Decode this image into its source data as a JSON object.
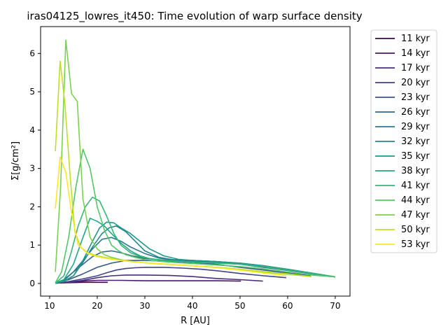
{
  "chart_data": {
    "type": "line",
    "title": "iras04125_lowres_it450: Time evolution of warp surface density",
    "xlabel": "R [AU]",
    "ylabel": "Σ[g/cm²]",
    "xlim": [
      8.1,
      73.1
    ],
    "ylim": [
      -0.33,
      6.7
    ],
    "xticks": [
      10,
      20,
      30,
      40,
      50,
      60,
      70
    ],
    "yticks": [
      0,
      1,
      2,
      3,
      4,
      5,
      6
    ],
    "legend_position": "outside-right",
    "grid": false,
    "series": [
      {
        "name": "11 kyr",
        "color": "#440154",
        "x": [
          11.2,
          14,
          17,
          20,
          22.2
        ],
        "y": [
          0.01,
          0.02,
          0.03,
          0.03,
          0.03
        ]
      },
      {
        "name": "14 kyr",
        "color": "#481a6c",
        "x": [
          11.2,
          14,
          17,
          20,
          25,
          30,
          35,
          40,
          45,
          50.2
        ],
        "y": [
          0.01,
          0.03,
          0.06,
          0.08,
          0.08,
          0.07,
          0.07,
          0.07,
          0.07,
          0.06
        ]
      },
      {
        "name": "17 kyr",
        "color": "#472f7d",
        "x": [
          11.2,
          14,
          17,
          20,
          23,
          26,
          30,
          35,
          40,
          45,
          50,
          54.8
        ],
        "y": [
          0.01,
          0.03,
          0.08,
          0.15,
          0.2,
          0.22,
          0.22,
          0.21,
          0.18,
          0.13,
          0.1,
          0.06
        ]
      },
      {
        "name": "20 kyr",
        "color": "#414487",
        "x": [
          11.2,
          14,
          17,
          20,
          22,
          24,
          26,
          28,
          30,
          34,
          38,
          42,
          46,
          50,
          55,
          59.7
        ],
        "y": [
          0.01,
          0.05,
          0.12,
          0.2,
          0.28,
          0.35,
          0.39,
          0.41,
          0.42,
          0.42,
          0.4,
          0.37,
          0.32,
          0.26,
          0.2,
          0.15
        ]
      },
      {
        "name": "23 kyr",
        "color": "#39568c",
        "x": [
          11.2,
          14,
          17,
          20,
          23,
          26,
          30,
          35,
          40,
          45,
          50,
          55,
          60,
          64.8
        ],
        "y": [
          0.01,
          0.1,
          0.25,
          0.42,
          0.53,
          0.6,
          0.6,
          0.58,
          0.55,
          0.5,
          0.42,
          0.35,
          0.27,
          0.2
        ]
      },
      {
        "name": "26 kyr",
        "color": "#31688e",
        "x": [
          11.2,
          13,
          15,
          17,
          19,
          21,
          23,
          25,
          27,
          30,
          33,
          36,
          40,
          45,
          50,
          55,
          60,
          65,
          70
        ],
        "y": [
          0.01,
          0.1,
          0.3,
          0.5,
          0.7,
          0.82,
          0.85,
          0.8,
          0.73,
          0.65,
          0.62,
          0.6,
          0.58,
          0.55,
          0.5,
          0.42,
          0.34,
          0.25,
          0.17
        ]
      },
      {
        "name": "29 kyr",
        "color": "#2a788e",
        "x": [
          11.2,
          13,
          15,
          17,
          19,
          21,
          23,
          25,
          27,
          30,
          33,
          36,
          40,
          45,
          50,
          55,
          60,
          65,
          70
        ],
        "y": [
          0.01,
          0.08,
          0.3,
          0.6,
          0.9,
          1.15,
          1.2,
          1.1,
          0.95,
          0.78,
          0.66,
          0.62,
          0.6,
          0.57,
          0.52,
          0.45,
          0.36,
          0.26,
          0.17
        ]
      },
      {
        "name": "32 kyr",
        "color": "#23888e",
        "x": [
          11.2,
          13,
          15,
          17,
          19,
          21,
          22.5,
          24,
          26,
          28,
          30,
          33,
          36,
          40,
          45,
          50,
          55,
          60,
          65,
          70
        ],
        "y": [
          0.01,
          0.06,
          0.2,
          0.55,
          0.95,
          1.3,
          1.45,
          1.5,
          1.35,
          1.1,
          0.85,
          0.68,
          0.62,
          0.6,
          0.57,
          0.53,
          0.46,
          0.37,
          0.27,
          0.17
        ]
      },
      {
        "name": "35 kyr",
        "color": "#1f988b",
        "x": [
          11.2,
          13,
          15,
          17,
          19,
          20.5,
          22,
          23.5,
          25,
          27,
          29,
          31,
          34,
          37,
          40,
          45,
          50,
          55,
          60,
          65,
          70
        ],
        "y": [
          0.01,
          0.05,
          0.2,
          0.6,
          1.1,
          1.45,
          1.6,
          1.58,
          1.45,
          1.3,
          1.1,
          0.9,
          0.72,
          0.63,
          0.6,
          0.57,
          0.53,
          0.46,
          0.37,
          0.27,
          0.17
        ]
      },
      {
        "name": "38 kyr",
        "color": "#22a884",
        "x": [
          11.2,
          13,
          15,
          17,
          18.5,
          20,
          21.5,
          23,
          25,
          27,
          29,
          31,
          34,
          37,
          40,
          45,
          50,
          55,
          60,
          65,
          70
        ],
        "y": [
          0.01,
          0.1,
          0.5,
          1.2,
          1.7,
          1.62,
          1.5,
          1.3,
          1.05,
          0.85,
          0.72,
          0.65,
          0.6,
          0.58,
          0.56,
          0.54,
          0.5,
          0.44,
          0.35,
          0.26,
          0.17
        ]
      },
      {
        "name": "41 kyr",
        "color": "#35b779",
        "x": [
          11.2,
          13,
          14.5,
          16,
          17.5,
          19,
          20.5,
          22,
          23.5,
          25,
          27,
          29,
          31,
          34,
          37,
          40,
          45,
          50,
          55,
          60,
          65,
          70
        ],
        "y": [
          0.01,
          0.2,
          0.8,
          1.5,
          2.0,
          2.25,
          2.15,
          1.75,
          1.3,
          1.0,
          0.8,
          0.7,
          0.65,
          0.6,
          0.58,
          0.56,
          0.53,
          0.5,
          0.44,
          0.35,
          0.26,
          0.17
        ]
      },
      {
        "name": "44 kyr",
        "color": "#54c568",
        "x": [
          11.2,
          12.5,
          14,
          15.5,
          17,
          18.5,
          20,
          21.5,
          23,
          24.5,
          26,
          28,
          30,
          33,
          36,
          40,
          45,
          50,
          55,
          60,
          65,
          70
        ],
        "y": [
          0.02,
          0.3,
          1.2,
          2.5,
          3.5,
          3.0,
          2.0,
          1.4,
          1.0,
          0.85,
          0.75,
          0.68,
          0.62,
          0.58,
          0.55,
          0.52,
          0.48,
          0.44,
          0.38,
          0.3,
          0.22,
          0.17
        ]
      },
      {
        "name": "47 kyr",
        "color": "#7ad151",
        "x": [
          11.2,
          12.3,
          13.4,
          14.6,
          15.8,
          17,
          18.5,
          20,
          21.5,
          23,
          25,
          27,
          30,
          33,
          36,
          40,
          45,
          50,
          55,
          60,
          65
        ],
        "y": [
          0.3,
          2.5,
          6.35,
          4.95,
          4.75,
          2.2,
          1.2,
          0.9,
          0.75,
          0.68,
          0.62,
          0.58,
          0.54,
          0.51,
          0.49,
          0.46,
          0.42,
          0.37,
          0.3,
          0.24,
          0.18
        ]
      },
      {
        "name": "50 kyr",
        "color": "#bddf26",
        "x": [
          11.2,
          12.2,
          13.2,
          14.3,
          15.3,
          16.5,
          18,
          20,
          22,
          25,
          28,
          32,
          36,
          40,
          45,
          50,
          55,
          60,
          64.8
        ],
        "y": [
          3.45,
          5.8,
          4.7,
          2.8,
          1.35,
          0.95,
          0.8,
          0.72,
          0.67,
          0.6,
          0.56,
          0.52,
          0.49,
          0.46,
          0.42,
          0.37,
          0.31,
          0.25,
          0.18
        ]
      },
      {
        "name": "53 kyr",
        "color": "#fde725",
        "x": [
          11.2,
          12.2,
          13.4,
          14.6,
          16,
          18,
          20,
          22,
          25,
          28,
          32,
          36,
          40,
          45,
          50,
          55,
          59.7
        ],
        "y": [
          1.95,
          3.3,
          2.9,
          1.85,
          1.0,
          0.78,
          0.7,
          0.65,
          0.6,
          0.56,
          0.52,
          0.49,
          0.46,
          0.41,
          0.35,
          0.27,
          0.2
        ]
      }
    ]
  }
}
